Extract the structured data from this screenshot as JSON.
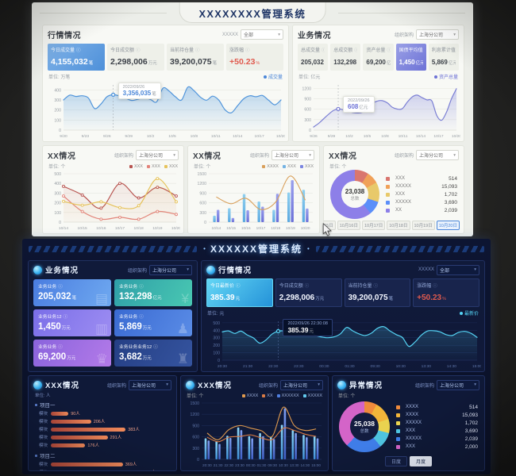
{
  "light": {
    "title": "XXXXXXXX管理系统",
    "market": {
      "title": "行情情况",
      "filter_label": "XXXXX",
      "filter_value": "全部",
      "unit_note": "单位: 万笔",
      "legend_note": "成交量",
      "cards": [
        {
          "label": "今日成交量",
          "value": "4,155,032",
          "unit": "笔",
          "style": "active-blue"
        },
        {
          "label": "今日成交额",
          "value": "2,298,006",
          "unit": "万元",
          "style": ""
        },
        {
          "label": "当前持仓量",
          "value": "39,200,075",
          "unit": "笔",
          "style": ""
        },
        {
          "label": "涨跌幅",
          "value": "+50.23",
          "unit": "%",
          "style": "danger"
        }
      ]
    },
    "business": {
      "title": "业务情况",
      "filter_label": "组织架构",
      "filter_value": "上海分公司",
      "unit_note": "单位: 亿元",
      "legend_note": "资产总量",
      "cards": [
        {
          "label": "总成交量",
          "value": "205,032",
          "unit": "万笔",
          "style": ""
        },
        {
          "label": "总成交额",
          "value": "132,298",
          "unit": "亿元",
          "style": ""
        },
        {
          "label": "资产总量",
          "value": "69,200",
          "unit": "亿元",
          "style": ""
        },
        {
          "label": "国债平均值",
          "value": "1,450",
          "unit": "亿元",
          "style": "active-purple"
        },
        {
          "label": "利息累计值",
          "value": "5,869",
          "unit": "亿元",
          "style": ""
        }
      ]
    },
    "panel_lines": {
      "title": "XX情况",
      "filter_label": "组织架构",
      "filter_value": "上海分公司",
      "unit_note": "单位: 个"
    },
    "panel_combo": {
      "title": "XX情况",
      "filter_label": "组织架构",
      "filter_value": "上海分公司",
      "unit_note": "单位: 个"
    },
    "panel_donut": {
      "title": "XX情况",
      "filter_label": "组织架构",
      "filter_value": "上海分公司",
      "unit_note": "单位: 个",
      "date_tabs": [
        "10月14日",
        "10月15日",
        "10月16日",
        "10月17日",
        "10月18日",
        "10月19日",
        "10月20日"
      ],
      "active_tab": 6
    }
  },
  "dark": {
    "title": "XXXXXX管理系统",
    "title_deco": "•",
    "business": {
      "title": "业务情况",
      "filter_label": "组织架构",
      "filter_value": "上海分公司",
      "cards": [
        {
          "label": "业务业务",
          "value": "205,032",
          "unit": "笔",
          "icon": "document-icon",
          "glyph": "▤",
          "g1": "#4a7de0",
          "g2": "#6fa9f0"
        },
        {
          "label": "业务业务",
          "value": "132,298",
          "unit": "亿元",
          "icon": "yen-icon",
          "glyph": "¥",
          "g1": "#2f9fa8",
          "g2": "#49c8b2"
        },
        {
          "label": "业务业务12",
          "value": "1,450",
          "unit": "万元",
          "icon": "chart-icon",
          "glyph": "▥",
          "g1": "#7a6ee8",
          "g2": "#9d8df2"
        },
        {
          "label": "业务业务",
          "value": "5,869",
          "unit": "万元",
          "icon": "person-icon",
          "glyph": "♟",
          "g1": "#3a6ad2",
          "g2": "#5a8ce6"
        },
        {
          "label": "业务业务",
          "value": "69,200",
          "unit": "万元",
          "icon": "crown-icon",
          "glyph": "♛",
          "g1": "#8a64dd",
          "g2": "#b37ae8"
        },
        {
          "label": "业务业务业务12",
          "value": "3,682",
          "unit": "万元",
          "icon": "bank-icon",
          "glyph": "♜",
          "g1": "#253f85",
          "g2": "#35549f"
        }
      ]
    },
    "market": {
      "title": "行情情况",
      "filter_label": "XXXXX",
      "filter_value": "全部",
      "unit_note": "单位: 元",
      "legend_note": "最新价",
      "cards": [
        {
          "label": "今日最新价",
          "value": "385.39",
          "unit": "元",
          "style": "active-cyan"
        },
        {
          "label": "今日成交额",
          "value": "2,298,006",
          "unit": "万元",
          "style": ""
        },
        {
          "label": "当前持仓量",
          "value": "39,200,075",
          "unit": "笔",
          "style": ""
        },
        {
          "label": "涨跌幅",
          "value": "+50.23",
          "unit": "%",
          "style": "danger"
        }
      ]
    },
    "panel_hbar": {
      "title": "XXX情况",
      "filter_label": "组织架构",
      "filter_value": "上海分公司",
      "unit_note": "单位: 人"
    },
    "panel_combo": {
      "title": "XXX情况",
      "filter_label": "组织架构",
      "filter_value": "上海分公司",
      "unit_note": "单位: 个"
    },
    "panel_donut": {
      "title": "异常情况",
      "filter_label": "组织架构",
      "filter_value": "上海分公司",
      "unit_note": "单位: 个",
      "buttons": [
        {
          "label": "日度",
          "active": false
        },
        {
          "label": "月度",
          "active": true
        }
      ]
    }
  },
  "chart_data": [
    {
      "id": "lt-market-area",
      "type": "area",
      "title": "行情情况-成交量走势",
      "x": [
        "9/20",
        "9/23",
        "9/26",
        "9/29",
        "10/2",
        "10/5",
        "10/8",
        "10/11",
        "10/14",
        "10/17",
        "10/20"
      ],
      "ymax": 450,
      "yticks": [
        0,
        100,
        200,
        300,
        400
      ],
      "series": [
        {
          "name": "成交量",
          "color": "#4f94db",
          "fill": "#5ea0e0",
          "values": [
            300,
            348,
            335,
            342,
            320,
            215,
            258,
            332,
            352,
            340,
            318,
            295,
            308,
            322,
            305,
            282,
            418,
            388,
            332,
            300,
            428,
            392,
            330,
            298,
            338,
            298,
            202,
            172,
            242,
            312,
            342,
            332,
            345,
            298,
            252,
            300
          ]
        }
      ],
      "tooltip": {
        "index": 8,
        "title": "2022/09/26",
        "value": "3,356,035",
        "unit": "笔",
        "color": "#4a86d8"
      }
    },
    {
      "id": "lt-business-area",
      "type": "area",
      "title": "业务情况-资产总量走势",
      "x": [
        "9/26",
        "9/29",
        "10/2",
        "10/5",
        "10/8",
        "10/11",
        "10/14",
        "10/17",
        "10/20"
      ],
      "ymax": 1300,
      "yticks": [
        0,
        300,
        600,
        900,
        1200
      ],
      "series": [
        {
          "name": "资产总量",
          "color": "#7b7fd4",
          "fill": "#8a8fe0",
          "values": [
            90,
            190,
            320,
            450,
            560,
            608,
            585,
            540,
            505,
            492,
            520,
            625,
            770,
            838,
            845,
            780,
            655,
            605,
            615,
            800,
            950,
            1005,
            935,
            870,
            840,
            420,
            285,
            525,
            905,
            1190
          ]
        }
      ],
      "tooltip": {
        "index": 5,
        "title": "2022/09/26",
        "value": "608",
        "unit": "亿元",
        "color": "#6d72d6"
      }
    },
    {
      "id": "lt-lines",
      "type": "line",
      "title": "XX情况-多系列折线",
      "x": [
        "10/14",
        "10/15",
        "10/16",
        "10/17",
        "10/18",
        "10/19",
        "10/20"
      ],
      "ymax": 500,
      "yticks": [
        0,
        100,
        200,
        300,
        400,
        500
      ],
      "legend": [
        {
          "label": "XXX",
          "color": "#b85450"
        },
        {
          "label": "XXX",
          "color": "#e2837a"
        },
        {
          "label": "XXX",
          "color": "#e6c35c"
        }
      ],
      "series": [
        {
          "name": "XXX",
          "color": "#b85450",
          "markers": true,
          "fill": "#c0504d",
          "fillOp": 0.1,
          "values": [
            370,
            280,
            145,
            400,
            250,
            360,
            270
          ]
        },
        {
          "name": "XXX",
          "color": "#e2837a",
          "markers": true,
          "values": [
            270,
            110,
            30,
            50,
            30,
            110,
            80
          ]
        },
        {
          "name": "XXX",
          "color": "#e6c35c",
          "markers": true,
          "fill": "#e6c35c",
          "fillOp": 0.1,
          "values": [
            215,
            175,
            210,
            150,
            170,
            450,
            210
          ]
        }
      ]
    },
    {
      "id": "lt-combo",
      "type": "bar-line",
      "title": "XX情况-柱线组合",
      "x": [
        "10/14",
        "10/15",
        "10/16",
        "10/17",
        "10/18",
        "10/19",
        "10/20"
      ],
      "ymax": 1500,
      "yticks": [
        0,
        300,
        600,
        900,
        1200,
        1500
      ],
      "legend": [
        {
          "label": "XXXX",
          "color": "#d9a05b"
        },
        {
          "label": "XXX",
          "color": "#74b3e3"
        },
        {
          "label": "XXX",
          "color": "#7b86e0"
        }
      ],
      "bars": [
        {
          "name": "XXX",
          "c1": "#8fd0f0",
          "c2": "#5aa8e0",
          "values": [
            200,
            430,
            870,
            640,
            380,
            920,
            1000
          ]
        },
        {
          "name": "XXX",
          "c1": "#9aa0ee",
          "c2": "#6a6fd8",
          "values": [
            380,
            130,
            370,
            480,
            880,
            1300,
            420
          ]
        }
      ],
      "lines": [
        {
          "name": "XXXX",
          "color": "#d9a05b",
          "values": [
            780,
            570,
            740,
            390,
            620,
            1430,
            680
          ]
        }
      ]
    },
    {
      "id": "lt-donut",
      "type": "donut",
      "title": "XX情况-占比",
      "total": "23,038",
      "total_label": "总数",
      "items": [
        {
          "label": "XXX",
          "value": "514",
          "color": "#d9766f"
        },
        {
          "label": "XXXXX",
          "value": "15,093",
          "color": "#f0a158"
        },
        {
          "label": "XXX",
          "value": "1,702",
          "color": "#e8c96a"
        },
        {
          "label": "XXXXX",
          "value": "3,690",
          "color": "#5b8ff9"
        },
        {
          "label": "XX",
          "value": "2,039",
          "color": "#8d7fe8"
        }
      ],
      "weights": [
        9,
        8,
        13,
        9,
        61
      ]
    },
    {
      "id": "dk-market-line",
      "type": "area",
      "dark": true,
      "title": "行情情况-最新价走势",
      "x": [
        "20:30",
        "21:30",
        "22:30",
        "23:30",
        "00:30",
        "01:30",
        "09:30",
        "10:30",
        "13:30",
        "14:30",
        "15:00"
      ],
      "ymax": 520,
      "yticks": [
        0,
        100,
        200,
        300,
        400,
        500
      ],
      "series": [
        {
          "name": "最新价",
          "color": "#55d4f5",
          "fill": "#55d4f5",
          "fillOp": 0.22,
          "values": [
            378,
            392,
            358,
            388,
            338,
            298,
            228,
            268,
            348,
            388,
            392,
            385,
            352,
            330,
            385,
            332,
            310,
            300,
            312,
            352,
            438,
            392,
            352,
            330,
            362,
            428,
            448,
            390,
            342,
            302,
            185,
            242,
            332,
            390,
            394,
            380,
            342,
            330,
            372,
            385,
            360,
            305
          ]
        }
      ],
      "tooltip": {
        "index": 9,
        "title": "2022/09/26  22:30:08",
        "value": "385.39",
        "unit": "元",
        "color": "#ffffff"
      }
    },
    {
      "id": "dk-hbar",
      "type": "hbar",
      "title": "XXX情况-项目人数",
      "max": 500,
      "unit": "人",
      "groups": [
        {
          "name": "项目一",
          "rows": [
            {
              "label": "模块",
              "value": 90
            },
            {
              "label": "模块",
              "value": 206
            },
            {
              "label": "模块",
              "value": 383
            },
            {
              "label": "模块",
              "value": 291
            },
            {
              "label": "模块",
              "value": 176
            }
          ]
        },
        {
          "name": "项目二",
          "rows": [
            {
              "label": "模块",
              "value": 369
            },
            {
              "label": "模块",
              "value": 465
            }
          ]
        }
      ]
    },
    {
      "id": "dk-combo",
      "type": "bar-line",
      "dark": true,
      "title": "XXX情况-柱线组合",
      "x": [
        "20:30",
        "21:30",
        "22:30",
        "23:30",
        "00:30",
        "01:30",
        "09:30",
        "10:30",
        "13:30",
        "14:30",
        "15:00"
      ],
      "ymax": 1500,
      "yticks": [
        0,
        300,
        600,
        900,
        1200,
        1500
      ],
      "legend": [
        {
          "label": "XXXX",
          "color": "#e09a4e"
        },
        {
          "label": "XX",
          "color": "#d97b45"
        },
        {
          "label": "XXXXXX",
          "color": "#4f7fe0"
        },
        {
          "label": "XXXXX",
          "color": "#62c9ee"
        }
      ],
      "bars": [
        {
          "name": "XXXXXX",
          "c1": "#8fd8f8",
          "c2": "#3f8fd8",
          "values": [
            560,
            480,
            630,
            850,
            620,
            700,
            600,
            920,
            780,
            650,
            610
          ]
        },
        {
          "name": "XXXXX",
          "c1": "#7f9ff0",
          "c2": "#4060c8",
          "values": [
            500,
            410,
            570,
            780,
            560,
            620,
            540,
            1360,
            700,
            590,
            560
          ]
        }
      ],
      "lines": [
        {
          "name": "XXXX",
          "color": "#e09a4e",
          "values": [
            700,
            520,
            790,
            900,
            830,
            760,
            620,
            1390,
            900,
            770,
            810
          ]
        },
        {
          "name": "XX",
          "color": "#d97b45",
          "values": [
            590,
            470,
            590,
            610,
            650,
            570,
            530,
            830,
            770,
            670,
            610
          ]
        }
      ]
    },
    {
      "id": "dk-donut",
      "type": "donut",
      "title": "异常情况-占比",
      "total": "25,038",
      "total_label": "总数",
      "items": [
        {
          "label": "XXXX",
          "value": "514",
          "color": "#ef8a3c"
        },
        {
          "label": "XXXX",
          "value": "15,093",
          "color": "#f2b53a"
        },
        {
          "label": "XXXXX",
          "value": "1,702",
          "color": "#ead34f"
        },
        {
          "label": "XXX",
          "value": "3,690",
          "color": "#4ec3e0"
        },
        {
          "label": "XXXXX",
          "value": "2,039",
          "color": "#3f7de8"
        },
        {
          "label": "XXX",
          "value": "2,000",
          "color": "#d464c8"
        }
      ],
      "weights": [
        8,
        12,
        9,
        10,
        23,
        38
      ]
    }
  ]
}
